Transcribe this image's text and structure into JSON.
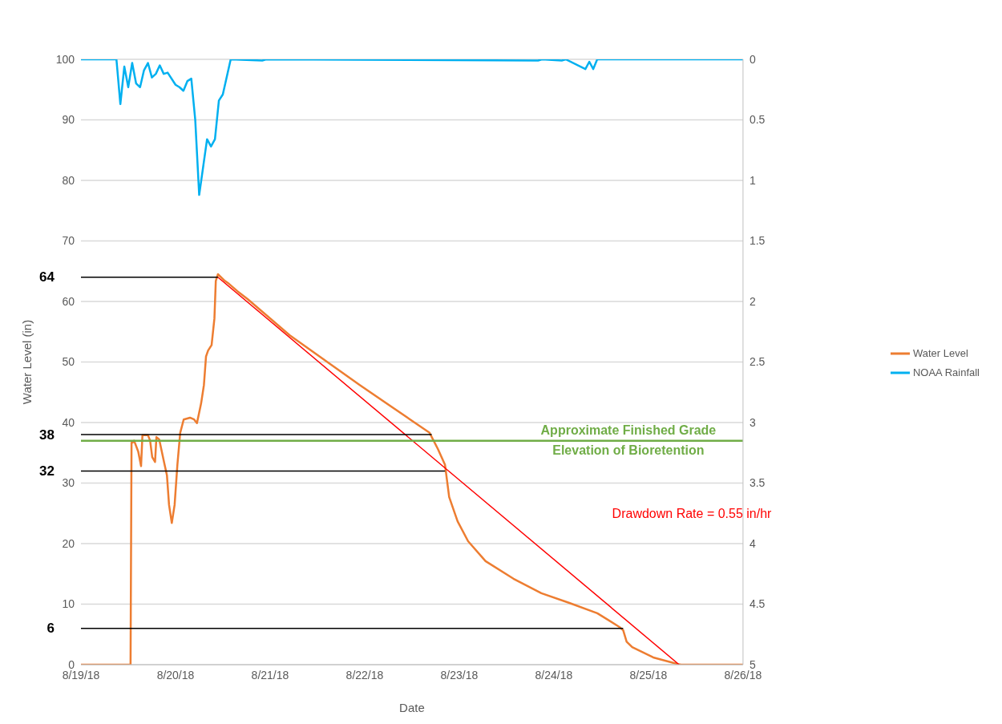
{
  "chart_data": {
    "type": "line",
    "xlabel": "Date",
    "ylabel": "Water Level (in)",
    "xlim": [
      "--08-19",
      "--08-26"
    ],
    "xticks": [
      {
        "value": "--08-19",
        "label": "8/19/18"
      },
      {
        "value": "--08-20",
        "label": "8/20/18"
      },
      {
        "value": "--08-21",
        "label": "8/21/18"
      },
      {
        "value": "--08-22",
        "label": "8/22/18"
      },
      {
        "value": "--08-23",
        "label": "8/23/18"
      },
      {
        "value": "--08-24",
        "label": "8/24/18"
      },
      {
        "value": "--08-25",
        "label": "8/25/18"
      },
      {
        "value": "--08-26",
        "label": "8/26/18"
      }
    ],
    "ylim": [
      0,
      100
    ],
    "yticks": [
      0,
      10,
      20,
      30,
      40,
      50,
      60,
      70,
      80,
      90,
      100
    ],
    "y2lim": [
      5,
      0
    ],
    "y2ticks": [
      0,
      0.5,
      1,
      1.5,
      2,
      2.5,
      3,
      3.5,
      4,
      4.5,
      5
    ],
    "grid": "y",
    "legend": "right",
    "series": [
      {
        "name": "Water Level",
        "color": "#ed7d31",
        "x": [
          "--08-19T00:00",
          "--08-19T12:35",
          "--08-19T12:50",
          "--08-19T13:07",
          "--08-19T13:29",
          "--08-19T14:32",
          "--08-19T15:15",
          "--08-19T15:36",
          "--08-19T17:01",
          "--08-19T17:33",
          "--08-19T18:05",
          "--08-19T18:48",
          "--08-19T19:09",
          "--08-19T19:52",
          "--08-19T21:06",
          "--08-19T21:49",
          "--08-19T22:21",
          "--08-19T23:03",
          "--08-19T23:46",
          "--08-20T00:28",
          "--08-20T01:11",
          "--08-20T02:04",
          "--08-20T03:40",
          "--08-20T04:43",
          "--08-20T05:26",
          "--08-20T06:30",
          "--08-20T07:12",
          "--08-20T07:44",
          "--08-20T08:16",
          "--08-20T09:09",
          "--08-20T09:52",
          "--08-20T10:13",
          "--08-20T10:45",
          "--08-20T12:31",
          "--08-20T13:35",
          "--08-20T15:42",
          "--08-20T18:17",
          "--08-21T05:00",
          "--08-21T22:45",
          "--08-22T16:28",
          "--08-22T18:36",
          "--08-22T20:23",
          "--08-22T21:26",
          "--08-22T23:34",
          "--08-23T02:14",
          "--08-23T06:40",
          "--08-23T13:45",
          "--08-23T20:50",
          "--08-24T03:56",
          "--08-24T11:02",
          "--08-24T16:42",
          "--08-24T17:35",
          "--08-24T18:28",
          "--08-24T19:53",
          "--08-25T01:13",
          "--08-25T07:25",
          "--08-25T08:18",
          "--08-26T00:00"
        ],
        "values": [
          0,
          0,
          36.7,
          36.7,
          37,
          35.2,
          32.8,
          37.9,
          37.9,
          37,
          34.3,
          33.5,
          37.6,
          37.2,
          33.4,
          31.3,
          26.4,
          23.4,
          26.4,
          33,
          38.3,
          40.5,
          40.8,
          40.5,
          39.9,
          43.2,
          46.2,
          50.9,
          51.9,
          52.8,
          57.2,
          63.4,
          64.5,
          63.4,
          62.9,
          61.7,
          60.4,
          54.4,
          46.2,
          38.3,
          35.6,
          33,
          27.7,
          23.7,
          20.4,
          17.1,
          14.2,
          11.8,
          10.2,
          8.5,
          6.2,
          5.7,
          3.8,
          2.9,
          1.2,
          0.1,
          0,
          0
        ]
      },
      {
        "name": "NOAA Rainfall",
        "color": "#00b0f0",
        "axis": "y2",
        "x": [
          "--08-19T00:00",
          "--08-19T09:00",
          "--08-19T10:00",
          "--08-19T11:00",
          "--08-19T12:00",
          "--08-19T13:00",
          "--08-19T14:00",
          "--08-19T15:00",
          "--08-19T16:00",
          "--08-19T17:00",
          "--08-19T18:00",
          "--08-19T19:00",
          "--08-19T20:00",
          "--08-19T21:00",
          "--08-19T22:00",
          "--08-20T00:00",
          "--08-20T01:00",
          "--08-20T02:00",
          "--08-20T03:00",
          "--08-20T04:00",
          "--08-20T05:00",
          "--08-20T06:00",
          "--08-20T08:00",
          "--08-20T09:00",
          "--08-20T10:00",
          "--08-20T11:00",
          "--08-20T12:00",
          "--08-20T14:00",
          "--08-20T22:00",
          "--08-20T23:00",
          "--08-23T20:00",
          "--08-23T21:00",
          "--08-24T02:00",
          "--08-24T03:00",
          "--08-24T08:00",
          "--08-24T09:00",
          "--08-24T10:00",
          "--08-24T11:00",
          "--08-26T00:00"
        ],
        "values": [
          0,
          0,
          0.37,
          0.06,
          0.23,
          0.03,
          0.2,
          0.23,
          0.09,
          0.03,
          0.15,
          0.12,
          0.05,
          0.12,
          0.11,
          0.21,
          0.23,
          0.26,
          0.18,
          0.16,
          0.5,
          1.12,
          0.66,
          0.72,
          0.66,
          0.34,
          0.29,
          0,
          0.01,
          0,
          0.01,
          0,
          0.01,
          0,
          0.08,
          0.02,
          0.08,
          0,
          0
        ]
      },
      {
        "color": "#ff0000",
        "x": [
          "--08-20T10:45",
          "--08-25T07:48"
        ],
        "values": [
          64,
          0
        ]
      },
      {
        "color": "#000000",
        "x": [
          "--08-19T00:00",
          "--08-20T10:45"
        ],
        "values": [
          64,
          64
        ]
      },
      {
        "color": "#000000",
        "x": [
          "--08-19T00:00",
          "--08-22T17:00"
        ],
        "values": [
          38,
          38
        ]
      },
      {
        "color": "#000000",
        "x": [
          "--08-19T00:00",
          "--08-22T20:23"
        ],
        "values": [
          32,
          32
        ]
      },
      {
        "color": "#000000",
        "x": [
          "--08-19T00:00",
          "--08-24T17:35"
        ],
        "values": [
          6,
          6
        ]
      }
    ],
    "ref_lines": [
      {
        "axis": "y",
        "value": 37,
        "label": "Approximate Finished Grade\nElevation of Bioretention",
        "color": "#70ad47"
      }
    ],
    "annotations": [
      {
        "text": "64",
        "x": "--08-19T00:00",
        "y": 64
      },
      {
        "text": "38",
        "x": "--08-19T00:00",
        "y": 38
      },
      {
        "text": "32",
        "x": "--08-19T00:00",
        "y": 32
      },
      {
        "text": "6",
        "x": "--08-19T00:00",
        "y": 6
      },
      "Drawdown Rate = 0.55 in/hr"
    ]
  }
}
